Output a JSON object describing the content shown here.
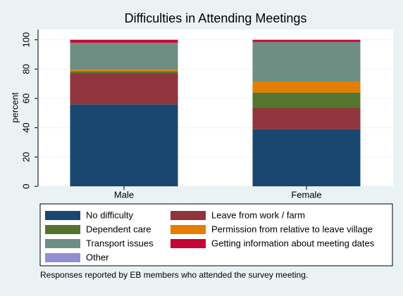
{
  "chart_data": {
    "type": "stacked_bar",
    "title": "Difficulties in Attending Meetings",
    "y_label": "percent",
    "note": "Responses reported by EB members who attended the survey meeting.",
    "categories": [
      "Male",
      "Female"
    ],
    "series": [
      {
        "name": "No difficulty",
        "color": "#1a476f",
        "values": [
          56,
          39
        ]
      },
      {
        "name": "Leave from work / farm",
        "color": "#90353b",
        "values": [
          21,
          14.5
        ]
      },
      {
        "name": "Dependent care",
        "color": "#55752f",
        "values": [
          1.5,
          10.5
        ]
      },
      {
        "name": "Permission from relative to leave village",
        "color": "#e37e00",
        "values": [
          1,
          7.5
        ]
      },
      {
        "name": "Transport issues",
        "color": "#6e8e84",
        "values": [
          18.5,
          27
        ]
      },
      {
        "name": "Getting information about meeting dates",
        "color": "#c10534",
        "values": [
          2,
          1.5
        ]
      },
      {
        "name": "Other",
        "color": "#938dd2",
        "values": [
          0,
          0
        ]
      }
    ],
    "ylim": [
      0,
      107
    ],
    "yticks": [
      0,
      20,
      40,
      60,
      80,
      100
    ],
    "grid": true
  }
}
